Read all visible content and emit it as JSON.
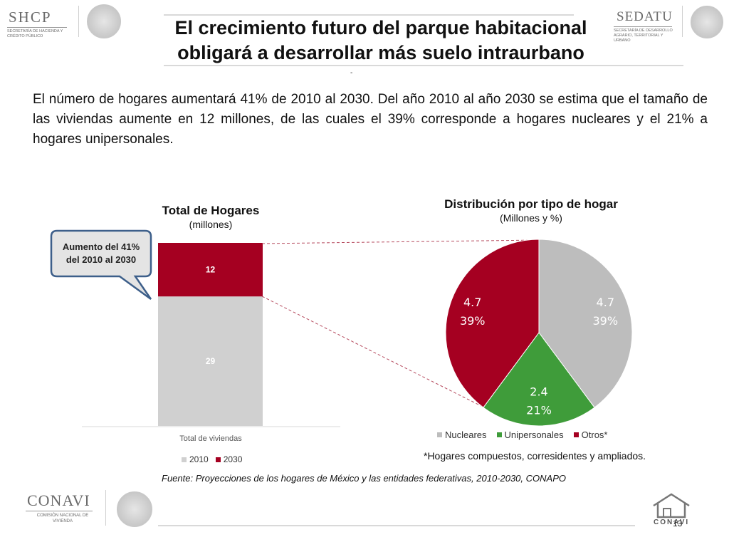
{
  "header": {
    "shcp": {
      "name": "SHCP",
      "subtitle": "Secretaría de Hacienda y Crédito Público"
    },
    "sedatu": {
      "name": "SEDATU",
      "subtitle": "Secretaría de Desarrollo Agrario, Territorial y Urbano"
    },
    "title_line1": "El crecimiento futuro del parque habitacional",
    "title_line2": "obligará a desarrollar más suelo intraurbano",
    "dash": "-"
  },
  "intro": "El número de hogares aumentará 41% de 2010 al 2030. Del año 2010 al año 2030 se estima que el tamaño de las viviendas aumente en 12 millones, de las cuales el 39% corresponde a hogares nucleares y el 21% a hogares unipersonales.",
  "callout": {
    "line1": "Aumento del 41%",
    "line2": "del 2010 al 2030"
  },
  "colors": {
    "gray": "#d0d0d0",
    "red": "#a50021",
    "green": "#3f9c3a",
    "pie_gray": "#bdbdbd"
  },
  "chart_data": [
    {
      "type": "bar",
      "stacked": true,
      "title": "Total de Hogares",
      "subtitle": "(millones)",
      "categories": [
        "Total de viviendas"
      ],
      "series": [
        {
          "name": "2010",
          "values": [
            29
          ]
        },
        {
          "name": "2030",
          "values": [
            12
          ]
        }
      ],
      "ylim": [
        0,
        41
      ],
      "legend": "bottom"
    },
    {
      "type": "pie",
      "title": "Distribución por tipo de hogar",
      "subtitle": "(Millones y %)",
      "slices": [
        {
          "name": "Nucleares",
          "value": 4.7,
          "label": "4.7",
          "pct": "39%"
        },
        {
          "name": "Unipersonales",
          "value": 2.4,
          "label": "2.4",
          "pct": "21%"
        },
        {
          "name": "Otros*",
          "value": 4.7,
          "label": "4.7",
          "pct": "39%"
        }
      ],
      "legend": "bottom"
    }
  ],
  "note": "*Hogares compuestos, corresidentes y ampliados.",
  "source": "Fuente: Proyecciones de los hogares de México y las entidades federativas, 2010-2030, CONAPO",
  "footer": {
    "conavi_name": "CONAVI",
    "conavi_subtitle": "Comisión Nacional de Vivienda",
    "conavi_mark": "CONAVI",
    "page": "13"
  }
}
